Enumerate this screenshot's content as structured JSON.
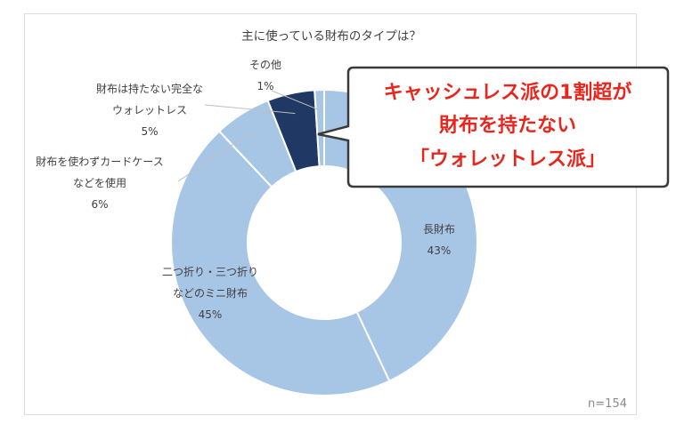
{
  "chart_data": {
    "type": "pie",
    "title": "主に使っている財布のタイプは？",
    "note": "n=154",
    "categories": [
      "長財布",
      "二つ折り・三つ折りなどのミニ財布",
      "財布を使わずカードケースなどを使用",
      "財布は持たない完全なウォレットレス",
      "その他"
    ],
    "values": [
      43,
      45,
      6,
      5,
      1
    ],
    "slices": [
      {
        "label_lines": [
          "長財布"
        ],
        "percent": "43%",
        "color": "#a7c6e6"
      },
      {
        "label_lines": [
          "二つ折り・三つ折り",
          "などのミニ財布"
        ],
        "percent": "45%",
        "color": "#a7c6e6"
      },
      {
        "label_lines": [
          "財布を使わずカードケース",
          "などを使用"
        ],
        "percent": "6%",
        "color": "#a7c6e6"
      },
      {
        "label_lines": [
          "財布は持たない完全な",
          "ウォレットレス"
        ],
        "percent": "5%",
        "color": "#1f3864"
      },
      {
        "label_lines": [
          "その他"
        ],
        "percent": "1%",
        "color": "#a7c6e6"
      }
    ]
  },
  "callout": {
    "lines": [
      "キャッシュレス派の1割超が",
      "財布を持たない",
      "「ウォレットレス派」"
    ],
    "text_color": "#e8261c"
  }
}
